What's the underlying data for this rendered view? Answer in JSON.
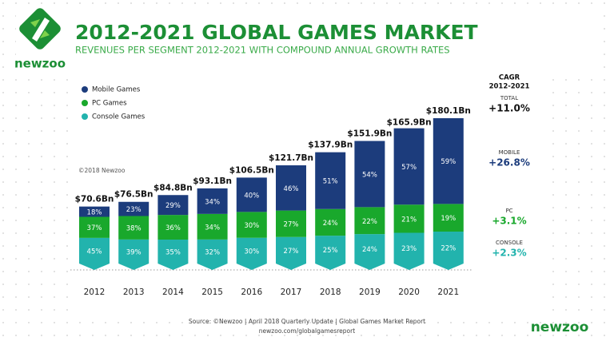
{
  "chart_data": {
    "type": "stacked_share_bar",
    "title": "2012-2021 GLOBAL GAMES MARKET",
    "subtitle": "REVENUES PER SEGMENT 2012-2021 WITH COMPOUND ANNUAL GROWTH RATES",
    "categories": [
      "2012",
      "2013",
      "2014",
      "2015",
      "2016",
      "2017",
      "2018",
      "2019",
      "2020",
      "2021"
    ],
    "totals": {
      "values": [
        70.6,
        76.5,
        84.8,
        93.1,
        106.5,
        121.7,
        137.9,
        151.9,
        165.9,
        180.1
      ],
      "value_labels": [
        "$70.6Bn",
        "$76.5Bn",
        "$84.8Bn",
        "$93.1Bn",
        "$106.5Bn",
        "$121.7Bn",
        "$137.9Bn",
        "$151.9Bn",
        "$165.9Bn",
        "$180.1Bn"
      ]
    },
    "series": [
      {
        "name": "Console Games",
        "color": "#22b3ad",
        "values": [
          45,
          39,
          35,
          32,
          30,
          27,
          25,
          24,
          23,
          22
        ],
        "value_labels": [
          "45%",
          "39%",
          "35%",
          "32%",
          "30%",
          "27%",
          "25%",
          "24%",
          "23%",
          "22%"
        ]
      },
      {
        "name": "PC Games",
        "color": "#19a82c",
        "values": [
          37,
          38,
          36,
          34,
          30,
          27,
          24,
          22,
          21,
          19
        ],
        "value_labels": [
          "37%",
          "38%",
          "36%",
          "34%",
          "30%",
          "27%",
          "24%",
          "22%",
          "21%",
          "19%"
        ]
      },
      {
        "name": "Mobile Games",
        "color": "#1c3c7c",
        "values": [
          18,
          23,
          29,
          34,
          40,
          46,
          51,
          54,
          57,
          59
        ],
        "value_labels": [
          "18%",
          "23%",
          "29%",
          "34%",
          "40%",
          "46%",
          "51%",
          "54%",
          "57%",
          "59%"
        ]
      }
    ],
    "legend_order": [
      2,
      1,
      0
    ],
    "cagr": {
      "title": [
        "CAGR",
        "2012-2021"
      ],
      "items": [
        {
          "name": "TOTAL",
          "value": "+11.0%",
          "color": "#111111"
        },
        {
          "name": "MOBILE",
          "value": "+26.8%",
          "color": "#1c3c7c"
        },
        {
          "name": "PC",
          "value": "+3.1%",
          "color": "#19a82c"
        },
        {
          "name": "CONSOLE",
          "value": "+2.3%",
          "color": "#22b3ad"
        }
      ]
    },
    "copyright": "©2018 Newzoo",
    "logo": "newzoo",
    "source": [
      "Source: ©Newzoo | April 2018 Quarterly Update | Global Games Market Report",
      "newzoo.com/globalgamesreport"
    ]
  }
}
